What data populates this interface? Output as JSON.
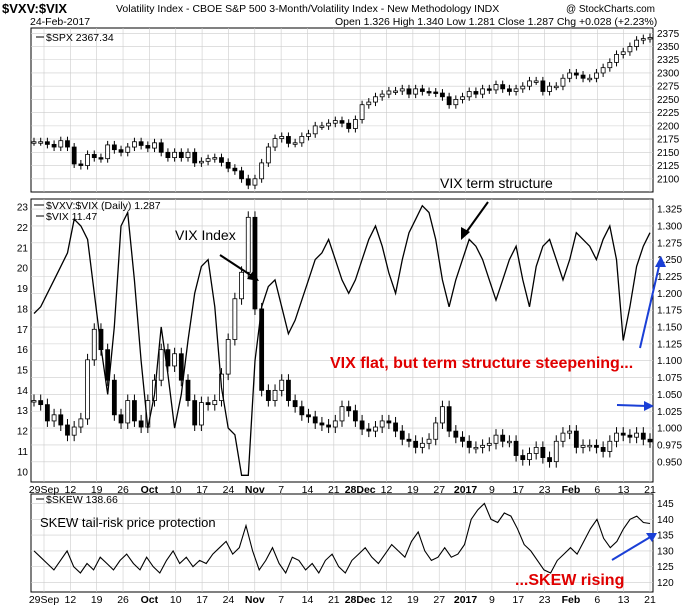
{
  "header": {
    "symbol": "$VXV:$VIX",
    "description": "Volatility Index - CBOE S&P 500 3-Month/Volatility Index - New Methodology  INDX",
    "date": "24-Feb-2017",
    "ohlc": "Open 1.326  High 1.340  Low 1.281  Close 1.287  Chg +0.028 (+2.23%)",
    "watermark": "@ StockCharts.com"
  },
  "colors": {
    "grid": "#cccccc",
    "annotation_red": "#e00000",
    "annotation_blue": "#1a3fd6",
    "line": "#000000"
  },
  "panels": {
    "spx_legend": "$SPX 2367.34",
    "main_legend_1": "$VXV:$VIX (Daily) 1.287",
    "main_legend_2": "$VIX 11.47",
    "skew_legend": "$SKEW 138.66"
  },
  "annotations": {
    "vix_index": "VIX Index",
    "term_structure": "VIX term structure",
    "flat_steepening": "VIX flat, but term structure steepening...",
    "skew_title": "SKEW tail-risk price protection",
    "skew_rising": "...SKEW rising"
  },
  "chart_data": [
    {
      "type": "bar",
      "name": "$SPX",
      "ylim": [
        2075,
        2385
      ],
      "y_ticks": [
        2100,
        2125,
        2150,
        2175,
        2200,
        2225,
        2250,
        2275,
        2300,
        2325,
        2350,
        2375
      ],
      "x_labels": [
        "29Sep",
        "12",
        "19",
        "26",
        "Oct",
        "10",
        "17",
        "24",
        "Nov",
        "7",
        "14",
        "21",
        "28Dec",
        "12",
        "19",
        "27",
        "2017",
        "9",
        "17",
        "23",
        "Feb",
        "6",
        "13",
        "21"
      ],
      "values": [
        2170,
        2170,
        2165,
        2160,
        2172,
        2160,
        2128,
        2125,
        2146,
        2140,
        2138,
        2164,
        2155,
        2150,
        2160,
        2170,
        2163,
        2158,
        2168,
        2150,
        2140,
        2150,
        2140,
        2150,
        2130,
        2133,
        2138,
        2140,
        2131,
        2120,
        2115,
        2100,
        2088,
        2100,
        2130,
        2160,
        2176,
        2180,
        2167,
        2168,
        2180,
        2185,
        2200,
        2200,
        2205,
        2210,
        2205,
        2195,
        2212,
        2240,
        2245,
        2255,
        2260,
        2266,
        2266,
        2270,
        2260,
        2270,
        2265,
        2264,
        2262,
        2255,
        2240,
        2250,
        2255,
        2265,
        2260,
        2270,
        2268,
        2278,
        2270,
        2265,
        2270,
        2275,
        2285,
        2285,
        2265,
        2275,
        2275,
        2290,
        2300,
        2296,
        2290,
        2290,
        2300,
        2310,
        2320,
        2335,
        2340,
        2350,
        2362,
        2365,
        2367
      ]
    },
    {
      "type": "line",
      "name": "$VXV:$VIX",
      "ylim": [
        0.92,
        1.34
      ],
      "y_ticks": [
        0.95,
        0.975,
        1.0,
        1.025,
        1.05,
        1.075,
        1.1,
        1.125,
        1.15,
        1.175,
        1.2,
        1.225,
        1.25,
        1.275,
        1.3,
        1.325
      ],
      "values": [
        1.17,
        1.18,
        1.2,
        1.22,
        1.24,
        1.26,
        1.31,
        1.3,
        1.28,
        1.2,
        1.12,
        1.05,
        1.15,
        1.3,
        1.32,
        1.22,
        1.1,
        1.0,
        1.05,
        1.15,
        1.08,
        1.0,
        1.05,
        1.13,
        1.2,
        1.24,
        1.25,
        1.18,
        1.06,
        1.0,
        0.99,
        0.93,
        0.93,
        1.1,
        1.18,
        1.21,
        1.22,
        1.18,
        1.14,
        1.16,
        1.19,
        1.22,
        1.25,
        1.26,
        1.28,
        1.25,
        1.22,
        1.2,
        1.22,
        1.25,
        1.28,
        1.3,
        1.27,
        1.23,
        1.2,
        1.25,
        1.29,
        1.31,
        1.33,
        1.32,
        1.28,
        1.22,
        1.18,
        1.22,
        1.25,
        1.28,
        1.27,
        1.25,
        1.22,
        1.19,
        1.22,
        1.25,
        1.27,
        1.22,
        1.18,
        1.24,
        1.27,
        1.28,
        1.25,
        1.22,
        1.25,
        1.29,
        1.28,
        1.27,
        1.25,
        1.28,
        1.3,
        1.25,
        1.13,
        1.18,
        1.24,
        1.27,
        1.29
      ]
    },
    {
      "type": "bar",
      "name": "$VIX",
      "ylim": [
        9.5,
        23.4
      ],
      "y_ticks": [
        10,
        11,
        12,
        13,
        14,
        15,
        16,
        17,
        18,
        19,
        20,
        21,
        22,
        23
      ],
      "values": [
        13.5,
        13.3,
        12.5,
        12.8,
        12.3,
        11.8,
        12.2,
        12.6,
        15.5,
        17.0,
        16.0,
        14.5,
        12.8,
        12.4,
        13.5,
        12.5,
        12.2,
        13.5,
        14.5,
        16.0,
        15.2,
        15.8,
        14.5,
        13.5,
        12.3,
        13.4,
        13.3,
        13.5,
        14.8,
        16.5,
        18.5,
        19.8,
        22.5,
        18.0,
        14.0,
        13.5,
        14.0,
        14.5,
        13.5,
        13.2,
        12.8,
        12.7,
        12.4,
        12.3,
        12.2,
        12.5,
        13.2,
        13.0,
        12.5,
        12.1,
        12.0,
        12.2,
        12.5,
        12.4,
        12.0,
        11.6,
        11.5,
        11.2,
        11.4,
        11.6,
        12.4,
        13.2,
        12.0,
        11.7,
        11.5,
        11.2,
        11.2,
        11.3,
        11.4,
        11.8,
        11.5,
        11.5,
        10.8,
        10.6,
        10.9,
        11.2,
        10.7,
        10.5,
        11.5,
        11.9,
        12.0,
        11.2,
        11.3,
        11.3,
        11.2,
        11.0,
        11.5,
        11.9,
        11.8,
        11.7,
        11.9,
        11.6,
        11.47
      ]
    },
    {
      "type": "line",
      "name": "$SKEW",
      "ylim": [
        117,
        148
      ],
      "y_ticks": [
        120,
        125,
        130,
        135,
        140,
        145
      ],
      "values": [
        130,
        128,
        126,
        124,
        127,
        130,
        125,
        123,
        126,
        124,
        128,
        126,
        124,
        127,
        129,
        126,
        124,
        128,
        125,
        123,
        127,
        130,
        126,
        128,
        125,
        127,
        126,
        129,
        131,
        133,
        129,
        131,
        138,
        130,
        124,
        127,
        131,
        126,
        123,
        128,
        127,
        124,
        126,
        123,
        127,
        129,
        125,
        123,
        127,
        129,
        131,
        128,
        126,
        129,
        132,
        130,
        128,
        133,
        136,
        130,
        127,
        128,
        131,
        128,
        129,
        132,
        140,
        143,
        145,
        140,
        139,
        142,
        141,
        137,
        132,
        130,
        127,
        124,
        123,
        127,
        129,
        131,
        129,
        133,
        137,
        140,
        134,
        131,
        133,
        137,
        140,
        141,
        139,
        138.66
      ]
    }
  ]
}
